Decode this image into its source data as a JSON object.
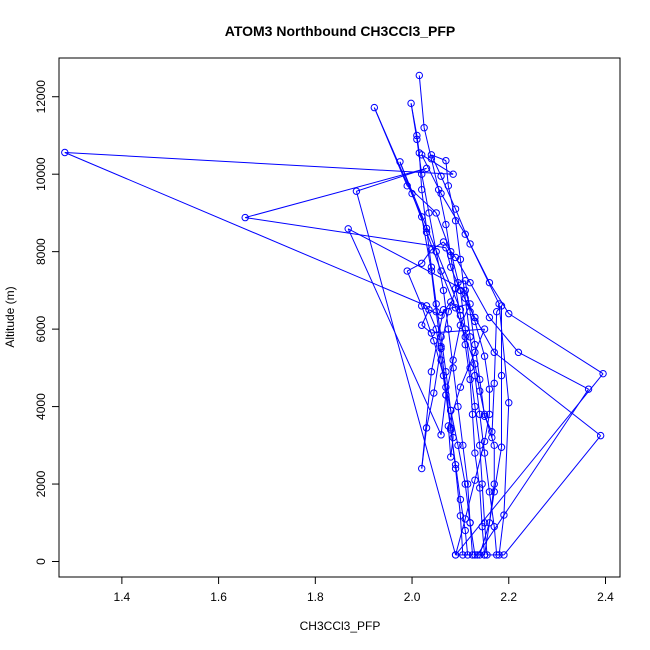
{
  "chart_data": {
    "type": "line",
    "title": "ATOM3 Northbound CH3CCl3_PFP",
    "xlabel": "CH3CCl3_PFP",
    "ylabel": "Altitude (m)",
    "xlim": [
      1.27,
      2.43
    ],
    "ylim": [
      -400,
      13000
    ],
    "x_ticks": [
      1.4,
      1.6,
      1.8,
      2.0,
      2.2,
      2.4
    ],
    "x_tick_labels": [
      "1.4",
      "1.6",
      "1.8",
      "2.0",
      "2.2",
      "2.4"
    ],
    "y_ticks": [
      0,
      2000,
      4000,
      6000,
      8000,
      10000,
      12000
    ],
    "y_tick_labels": [
      "0",
      "2000",
      "4000",
      "6000",
      "8000",
      "10000",
      "12000"
    ],
    "series_color": "#0000ff",
    "marker": "open-circle",
    "series": [
      {
        "points": [
          [
            2.015,
            12550
          ],
          [
            2.025,
            11200
          ],
          [
            2.04,
            10400
          ],
          [
            2.055,
            9600
          ],
          [
            2.07,
            8700
          ],
          [
            2.08,
            7900
          ],
          [
            2.09,
            7050
          ],
          [
            2.1,
            6350
          ],
          [
            2.11,
            5600
          ],
          [
            2.12,
            4700
          ],
          [
            2.125,
            3800
          ],
          [
            2.13,
            2800
          ],
          [
            2.14,
            1900
          ],
          [
            2.145,
            900
          ],
          [
            2.15,
            170
          ],
          [
            2.13,
            170
          ],
          [
            2.12,
            1000
          ],
          [
            2.11,
            2000
          ],
          [
            2.095,
            3000
          ],
          [
            2.08,
            3900
          ],
          [
            2.07,
            4900
          ],
          [
            2.06,
            5800
          ],
          [
            2.05,
            6650
          ],
          [
            2.04,
            7600
          ],
          [
            2.03,
            8600
          ],
          [
            2.02,
            9600
          ],
          [
            2.015,
            10550
          ],
          [
            2.01,
            11000
          ],
          [
            1.998,
            11830
          ],
          [
            2.01,
            10900
          ],
          [
            2.02,
            10000
          ],
          [
            2.035,
            9000
          ],
          [
            2.05,
            8000
          ],
          [
            2.065,
            7000
          ],
          [
            2.075,
            6000
          ],
          [
            2.085,
            5000
          ],
          [
            2.095,
            4000
          ],
          [
            2.105,
            3000
          ],
          [
            2.115,
            2000
          ],
          [
            2.12,
            1000
          ],
          [
            2.125,
            170
          ],
          [
            2.105,
            170
          ],
          [
            2.1,
            1180
          ],
          [
            2.09,
            2400
          ],
          [
            2.08,
            3450
          ],
          [
            2.07,
            4500
          ],
          [
            2.06,
            5500
          ],
          [
            2.05,
            6450
          ],
          [
            2.04,
            7500
          ],
          [
            2.02,
            8900
          ],
          [
            1.922,
            11720
          ],
          [
            1.99,
            9700
          ],
          [
            2.05,
            9000
          ],
          [
            2.08,
            8000
          ],
          [
            2.1,
            7000
          ],
          [
            2.11,
            6000
          ],
          [
            2.12,
            5000
          ],
          [
            2.13,
            4000
          ],
          [
            2.14,
            3000
          ],
          [
            2.145,
            2000
          ],
          [
            2.15,
            1000
          ],
          [
            2.155,
            170
          ],
          [
            2.18,
            170
          ],
          [
            2.19,
            1200
          ],
          [
            2.2,
            4100
          ],
          [
            2.18,
            6650
          ],
          [
            2.11,
            8450
          ],
          [
            2.06,
            9500
          ],
          [
            2.02,
            10500
          ],
          [
            2.085,
            10000
          ],
          [
            1.282,
            10560
          ],
          [
            2.03,
            6600
          ],
          [
            2.05,
            6000
          ],
          [
            2.06,
            5200
          ],
          [
            2.07,
            4300
          ],
          [
            2.08,
            3400
          ],
          [
            2.09,
            2500
          ],
          [
            2.1,
            1600
          ],
          [
            2.11,
            800
          ],
          [
            2.115,
            170
          ],
          [
            2.09,
            170
          ],
          [
            2.395,
            4850
          ],
          [
            2.2,
            6400
          ],
          [
            2.16,
            7200
          ],
          [
            2.12,
            8200
          ],
          [
            2.09,
            9100
          ],
          [
            2.06,
            9950
          ],
          [
            2.04,
            10500
          ],
          [
            2.07,
            10350
          ],
          [
            2.075,
            9700
          ],
          [
            2.09,
            8800
          ],
          [
            2.1,
            7800
          ],
          [
            2.11,
            6800
          ],
          [
            2.12,
            5800
          ],
          [
            2.13,
            4800
          ],
          [
            2.14,
            3800
          ],
          [
            2.15,
            2800
          ],
          [
            2.16,
            1800
          ],
          [
            2.17,
            900
          ],
          [
            2.175,
            170
          ],
          [
            2.19,
            170
          ],
          [
            2.39,
            3250
          ],
          [
            2.17,
            5400
          ],
          [
            2.13,
            6300
          ],
          [
            2.1,
            7000
          ],
          [
            2.08,
            7600
          ],
          [
            2.07,
            8100
          ],
          [
            1.655,
            8880
          ],
          [
            2.03,
            10150
          ],
          [
            1.885,
            9560
          ],
          [
            2.09,
            170
          ],
          [
            2.11,
            1100
          ],
          [
            2.13,
            2100
          ],
          [
            2.15,
            3100
          ],
          [
            2.16,
            3800
          ],
          [
            2.16,
            4450
          ],
          [
            2.15,
            5300
          ],
          [
            2.13,
            6200
          ],
          [
            2.11,
            7000
          ],
          [
            1.868,
            8590
          ],
          [
            2.06,
            3270
          ],
          [
            2.07,
            4300
          ],
          [
            2.085,
            5200
          ],
          [
            2.1,
            6100
          ],
          [
            2.12,
            6650
          ],
          [
            2.065,
            6500
          ],
          [
            2.04,
            4900
          ],
          [
            2.02,
            2400
          ],
          [
            2.03,
            3450
          ],
          [
            2.045,
            4350
          ],
          [
            2.06,
            5550
          ],
          [
            2.075,
            6450
          ],
          [
            2.095,
            7200
          ],
          [
            2.11,
            7250
          ],
          [
            2.12,
            6450
          ],
          [
            2.13,
            5600
          ],
          [
            2.14,
            4700
          ],
          [
            2.15,
            3750
          ],
          [
            2.165,
            3350
          ],
          [
            2.165,
            3200
          ],
          [
            2.17,
            4600
          ],
          [
            2.175,
            6450
          ],
          [
            2.185,
            6600
          ],
          [
            2.185,
            4800
          ],
          [
            2.185,
            2950
          ],
          [
            2.17,
            1800
          ],
          [
            2.15,
            170
          ],
          [
            2.135,
            170
          ],
          [
            2.365,
            4450
          ],
          [
            2.22,
            5400
          ],
          [
            2.16,
            6300
          ],
          [
            2.12,
            7200
          ],
          [
            2.09,
            7850
          ],
          [
            2.065,
            8250
          ],
          [
            2.04,
            8050
          ],
          [
            2.02,
            7700
          ],
          [
            1.99,
            7500
          ],
          [
            2.02,
            6600
          ],
          [
            2.045,
            5700
          ],
          [
            2.065,
            4800
          ],
          [
            2.08,
            3900
          ],
          [
            2.085,
            3200
          ],
          [
            2.08,
            2700
          ],
          [
            2.075,
            3500
          ],
          [
            2.1,
            4500
          ],
          [
            2.13,
            5400
          ],
          [
            2.15,
            6000
          ],
          [
            2.04,
            5900
          ],
          [
            2.02,
            6100
          ],
          [
            2.035,
            6500
          ],
          [
            2.06,
            6350
          ],
          [
            2.08,
            6700
          ],
          [
            2.1,
            6500
          ],
          [
            1.975,
            10320
          ],
          [
            2.0,
            9500
          ],
          [
            2.03,
            8500
          ],
          [
            2.06,
            7500
          ],
          [
            2.09,
            6550
          ],
          [
            2.11,
            5800
          ],
          [
            2.13,
            5100
          ],
          [
            2.14,
            4400
          ],
          [
            2.15,
            3800
          ],
          [
            2.17,
            3000
          ],
          [
            2.17,
            2000
          ],
          [
            2.16,
            1000
          ],
          [
            2.14,
            170
          ]
        ]
      }
    ]
  }
}
